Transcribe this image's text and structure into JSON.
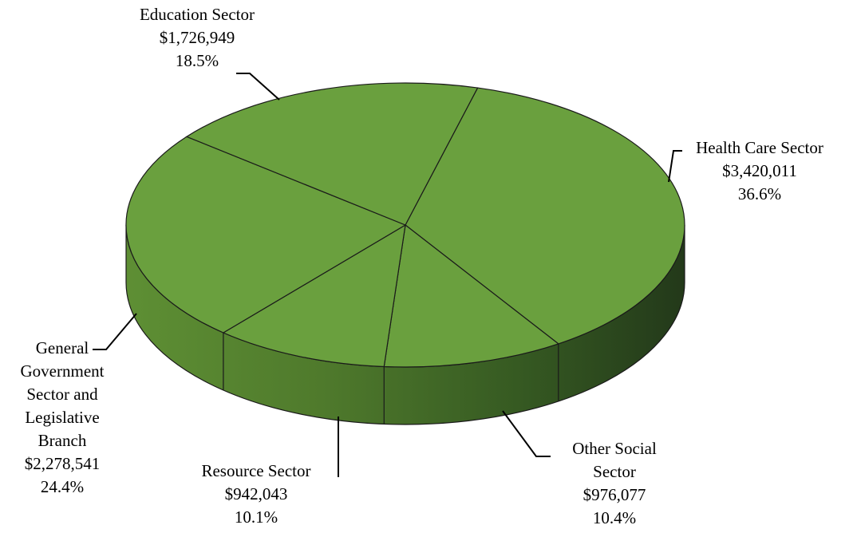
{
  "chart_data": {
    "type": "pie",
    "title": "",
    "slices": [
      {
        "name": "Health Care Sector",
        "value": 3420011,
        "value_label": "$3,420,011",
        "percent_label": "36.6%"
      },
      {
        "name": "Other Social Sector",
        "value": 976077,
        "value_label": "$976,077",
        "percent_label": "10.4%"
      },
      {
        "name": "Resource Sector",
        "value": 942043,
        "value_label": "$942,043",
        "percent_label": "10.1%"
      },
      {
        "name": "General Government Sector and Legislative Branch",
        "value": 2278541,
        "value_label": "$2,278,541",
        "percent_label": "24.4%"
      },
      {
        "name": "Education Sector",
        "value": 1726949,
        "value_label": "$1,726,949",
        "percent_label": "18.5%"
      }
    ],
    "colors": {
      "top": "#6aa03e",
      "side_light": "#5e8f34",
      "side_dark": "#26401a",
      "edge": "#1a1a1a"
    },
    "legend": "none (data labels outside slices)",
    "style": "3d-pie"
  },
  "labels": {
    "health": {
      "l1": "Health Care Sector",
      "l2": "$3,420,011",
      "l3": "36.6%"
    },
    "other": {
      "l1": "Other Social",
      "l2": "Sector",
      "l3": "$976,077",
      "l4": "10.4%"
    },
    "resource": {
      "l1": "Resource Sector",
      "l2": "$942,043",
      "l3": "10.1%"
    },
    "general": {
      "l1": "General",
      "l2": "Government",
      "l3": "Sector and",
      "l4": "Legislative",
      "l5": "Branch",
      "l6": "$2,278,541",
      "l7": "24.4%"
    },
    "education": {
      "l1": "Education Sector",
      "l2": "$1,726,949",
      "l3": "18.5%"
    }
  }
}
